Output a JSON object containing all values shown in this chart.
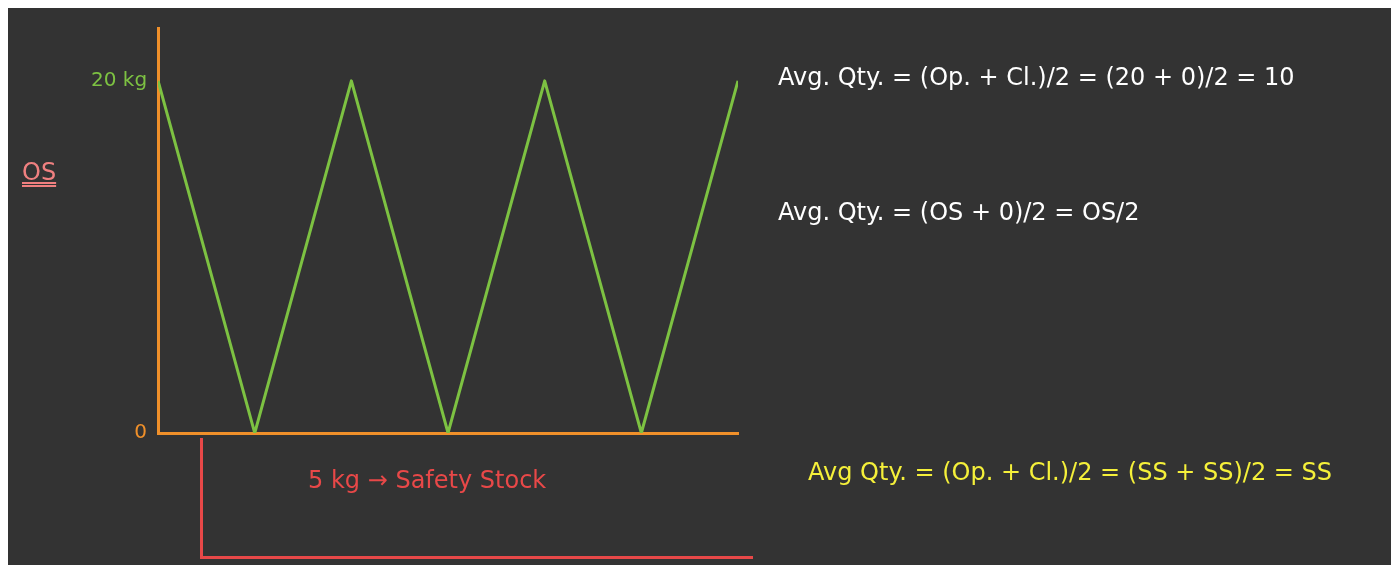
{
  "chart_data": {
    "type": "line",
    "categories": [
      null,
      null,
      null,
      null,
      null,
      null,
      null
    ],
    "series": [
      {
        "color": "#7dc242",
        "values": [
          20,
          0,
          20,
          0,
          20,
          0,
          20
        ]
      }
    ],
    "ylim": [
      0,
      23
    ],
    "yticks": [
      {
        "value": 0,
        "label": "0"
      },
      {
        "value": 20,
        "label": "20 kg"
      }
    ],
    "tick_labels": "y",
    "grid": false,
    "legend": false,
    "marker": "none",
    "line_style": "solid",
    "annotations": [
      "Avg. Qty. = (Op. + Cl.)/2 = (20 + 0)/2 = 10",
      "Avg. Qty. = (OS + 0)/2 = OS/2",
      "OS",
      "5 kg → Safety Stock",
      "Avg Qty. = (Op. + Cl.)/2 = (SS + SS)/2 = SS"
    ]
  }
}
